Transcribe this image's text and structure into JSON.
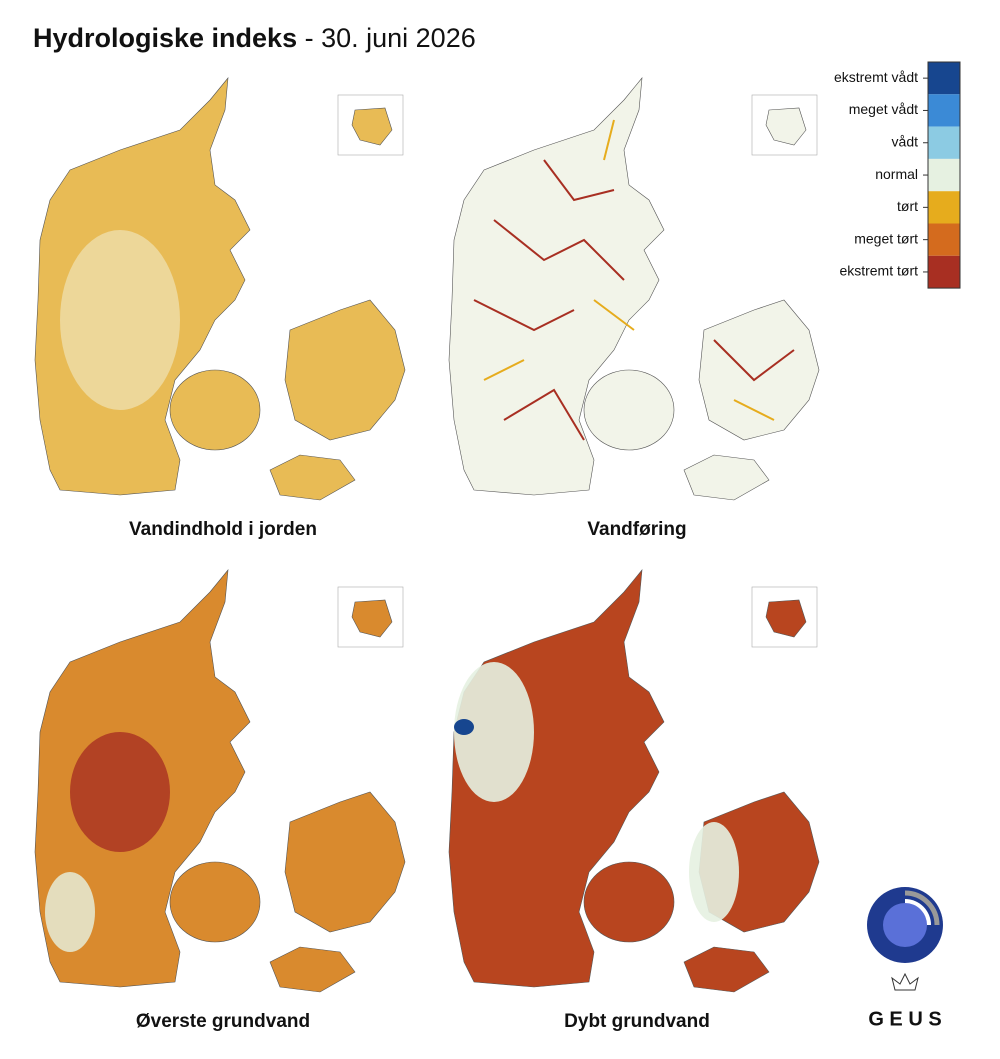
{
  "header": {
    "title": "Hydrologiske indeks",
    "subtitle": "- 30. juni 2026"
  },
  "legend": {
    "items": [
      {
        "label": "ekstremt vådt",
        "color": "#17468f"
      },
      {
        "label": "meget vådt",
        "color": "#3b8ad6"
      },
      {
        "label": "vådt",
        "color": "#8ccbe3"
      },
      {
        "label": "normal",
        "color": "#e6f1e1"
      },
      {
        "label": "tørt",
        "color": "#e6ac1d"
      },
      {
        "label": "meget tørt",
        "color": "#d46b1e"
      },
      {
        "label": "ekstremt tørt",
        "color": "#a82f22"
      }
    ]
  },
  "maps": [
    {
      "caption": "Vandindhold i jorden"
    },
    {
      "caption": "Vandføring"
    },
    {
      "caption": "Øverste grundvand"
    },
    {
      "caption": "Dybt grundvand"
    }
  ],
  "logo": {
    "text": "G E U S"
  }
}
